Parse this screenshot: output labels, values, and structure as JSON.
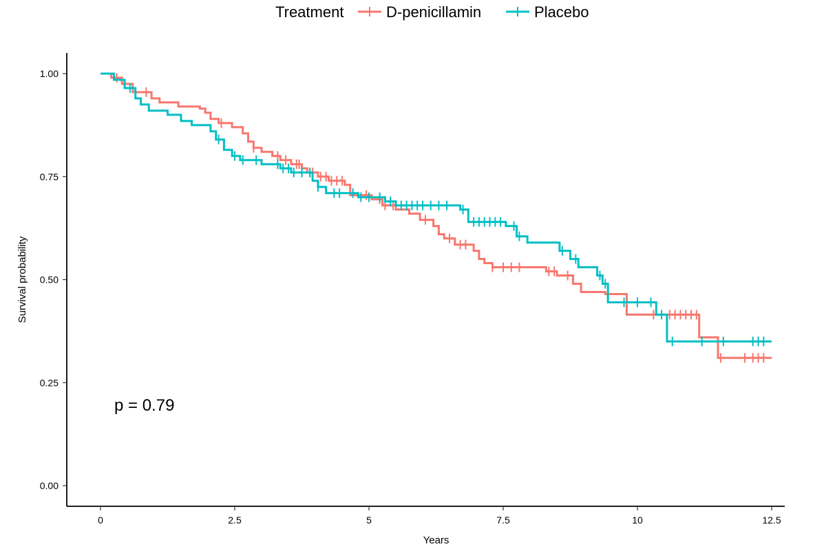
{
  "chart_data": {
    "type": "line",
    "subtype": "kaplan-meier survival curve",
    "title": "",
    "xlabel": "Years",
    "ylabel": "Survival probability",
    "xlim": [
      0,
      12.5
    ],
    "ylim": [
      0,
      1
    ],
    "x_ticks": [
      0,
      2.5,
      5,
      7.5,
      10,
      12.5
    ],
    "x_tick_labels": [
      "0",
      "2.5",
      "5",
      "7.5",
      "10",
      "12.5"
    ],
    "y_ticks": [
      0,
      0.25,
      0.5,
      0.75,
      1.0
    ],
    "y_tick_labels": [
      "0.00",
      "0.25",
      "0.50",
      "0.75",
      "1.00"
    ],
    "grid": false,
    "legend": {
      "title": "Treatment",
      "position": "top",
      "entries": [
        "D-penicillamin",
        "Placebo"
      ]
    },
    "annotation": "p = 0.79",
    "series": [
      {
        "name": "D-penicillamin",
        "color": "#F8766D",
        "steps": [
          [
            0,
            1.0
          ],
          [
            0.2,
            0.99
          ],
          [
            0.4,
            0.975
          ],
          [
            0.6,
            0.955
          ],
          [
            0.95,
            0.94
          ],
          [
            1.1,
            0.93
          ],
          [
            1.45,
            0.92
          ],
          [
            1.85,
            0.915
          ],
          [
            1.95,
            0.905
          ],
          [
            2.05,
            0.89
          ],
          [
            2.2,
            0.88
          ],
          [
            2.45,
            0.87
          ],
          [
            2.65,
            0.855
          ],
          [
            2.75,
            0.835
          ],
          [
            2.85,
            0.82
          ],
          [
            3.0,
            0.81
          ],
          [
            3.2,
            0.8
          ],
          [
            3.35,
            0.79
          ],
          [
            3.55,
            0.78
          ],
          [
            3.75,
            0.77
          ],
          [
            3.85,
            0.76
          ],
          [
            4.05,
            0.75
          ],
          [
            4.25,
            0.74
          ],
          [
            4.55,
            0.73
          ],
          [
            4.65,
            0.705
          ],
          [
            5.05,
            0.695
          ],
          [
            5.25,
            0.68
          ],
          [
            5.5,
            0.67
          ],
          [
            5.75,
            0.66
          ],
          [
            5.95,
            0.645
          ],
          [
            6.2,
            0.63
          ],
          [
            6.3,
            0.61
          ],
          [
            6.4,
            0.6
          ],
          [
            6.6,
            0.585
          ],
          [
            6.95,
            0.57
          ],
          [
            7.05,
            0.55
          ],
          [
            7.15,
            0.54
          ],
          [
            7.3,
            0.53
          ],
          [
            8.3,
            0.52
          ],
          [
            8.5,
            0.51
          ],
          [
            8.8,
            0.49
          ],
          [
            8.95,
            0.47
          ],
          [
            9.4,
            0.465
          ],
          [
            9.8,
            0.415
          ],
          [
            11.15,
            0.36
          ],
          [
            11.5,
            0.31
          ],
          [
            12.5,
            0.31
          ]
        ],
        "censored_times": [
          0.3,
          0.85,
          2.25,
          2.85,
          3.3,
          3.45,
          3.65,
          3.7,
          3.9,
          3.95,
          4.1,
          4.2,
          4.3,
          4.4,
          4.5,
          4.95,
          5.2,
          5.3,
          5.45,
          6.05,
          6.5,
          6.7,
          6.8,
          7.3,
          7.5,
          7.65,
          7.8,
          8.35,
          8.45,
          8.7,
          10.3,
          10.6,
          10.7,
          10.8,
          10.9,
          11.0,
          11.1,
          11.55,
          12.0,
          12.15,
          12.25,
          12.35
        ]
      },
      {
        "name": "Placebo",
        "color": "#00BFC4",
        "steps": [
          [
            0,
            1.0
          ],
          [
            0.25,
            0.985
          ],
          [
            0.45,
            0.965
          ],
          [
            0.65,
            0.94
          ],
          [
            0.75,
            0.925
          ],
          [
            0.9,
            0.91
          ],
          [
            1.25,
            0.9
          ],
          [
            1.5,
            0.885
          ],
          [
            1.7,
            0.875
          ],
          [
            2.05,
            0.86
          ],
          [
            2.15,
            0.84
          ],
          [
            2.3,
            0.815
          ],
          [
            2.45,
            0.8
          ],
          [
            2.6,
            0.79
          ],
          [
            3.0,
            0.78
          ],
          [
            3.35,
            0.77
          ],
          [
            3.55,
            0.76
          ],
          [
            3.95,
            0.74
          ],
          [
            4.05,
            0.725
          ],
          [
            4.2,
            0.71
          ],
          [
            4.8,
            0.7
          ],
          [
            5.3,
            0.69
          ],
          [
            5.5,
            0.68
          ],
          [
            6.7,
            0.67
          ],
          [
            6.85,
            0.64
          ],
          [
            7.55,
            0.63
          ],
          [
            7.75,
            0.605
          ],
          [
            7.95,
            0.59
          ],
          [
            8.55,
            0.57
          ],
          [
            8.75,
            0.55
          ],
          [
            8.9,
            0.53
          ],
          [
            9.25,
            0.51
          ],
          [
            9.35,
            0.49
          ],
          [
            9.45,
            0.445
          ],
          [
            10.35,
            0.415
          ],
          [
            10.55,
            0.35
          ],
          [
            12.5,
            0.35
          ]
        ],
        "censored_times": [
          0.55,
          2.2,
          2.5,
          2.65,
          2.9,
          3.3,
          3.4,
          3.5,
          3.6,
          3.75,
          3.9,
          4.05,
          4.35,
          4.45,
          4.7,
          4.85,
          5.0,
          5.2,
          5.4,
          5.6,
          5.7,
          5.8,
          5.9,
          6.0,
          6.15,
          6.3,
          6.45,
          6.75,
          6.95,
          7.05,
          7.15,
          7.25,
          7.35,
          7.45,
          7.7,
          7.8,
          8.6,
          8.85,
          9.3,
          9.4,
          9.75,
          10.0,
          10.25,
          10.45,
          10.65,
          11.2,
          11.6,
          12.15,
          12.25,
          12.35
        ]
      }
    ]
  }
}
